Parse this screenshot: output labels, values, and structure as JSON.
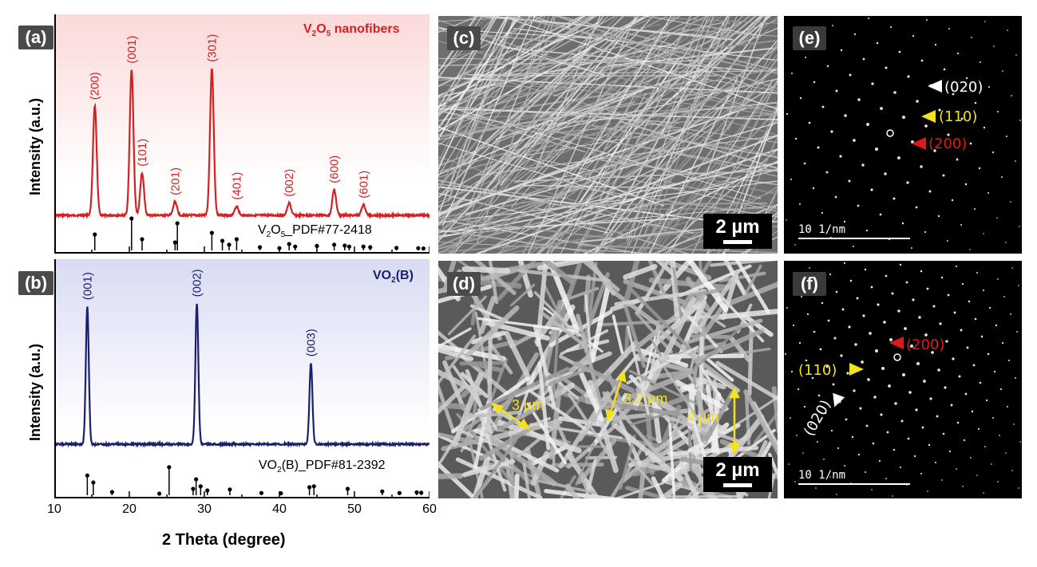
{
  "panels": {
    "a": {
      "tag": "(a)",
      "title_main": "V",
      "title_sub1": "2",
      "title_mid": "O",
      "title_sub2": "5",
      "title_tail": " nanofibers",
      "ref_main": "V",
      "ref_sub1": "2",
      "ref_mid": "O",
      "ref_sub2": "5",
      "ref_tail": "_PDF#77-2418"
    },
    "b": {
      "tag": "(b)",
      "title_main": "VO",
      "title_sub": "2",
      "title_tail": "(B)",
      "ref_main": "VO",
      "ref_sub": "2",
      "ref_tail": "(B)_PDF#81-2392"
    },
    "c": {
      "tag": "(c)",
      "scale": "2 µm"
    },
    "d": {
      "tag": "(d)",
      "scale": "2 µm",
      "measure1": "3 µm",
      "measure2": "3.2 µm",
      "measure3": "4 µm"
    },
    "e": {
      "tag": "(e)",
      "scale": "10 1/nm",
      "label_020": "(020)",
      "label_110": "(110)",
      "label_200": "(200)"
    },
    "f": {
      "tag": "(f)",
      "scale": "10 1/nm",
      "label_020": "(020)",
      "label_110": "(110)",
      "label_200": "(200)"
    }
  },
  "axes": {
    "ylabel": "Intensity (a.u.)",
    "xlabel": "2 Theta (degree)",
    "xticks": [
      "10",
      "20",
      "30",
      "40",
      "50",
      "60"
    ]
  },
  "colors": {
    "v2o5": "#d42020",
    "vo2": "#1a1f6e",
    "arrow_white": "#ffffff",
    "arrow_yellow": "#f5e21a",
    "arrow_red": "#e01818",
    "measure": "#f5e21a"
  },
  "chart_data": [
    {
      "type": "line",
      "panel": "a",
      "series": [
        {
          "name": "V2O5 nanofibers",
          "peaks": [
            {
              "x": 15.4,
              "y": 0.72,
              "label": "(200)"
            },
            {
              "x": 20.3,
              "y": 0.96,
              "label": "(001)"
            },
            {
              "x": 21.7,
              "y": 0.28,
              "label": "(101)"
            },
            {
              "x": 26.1,
              "y": 0.09,
              "label": "(201)"
            },
            {
              "x": 31.0,
              "y": 0.97,
              "label": "(301)"
            },
            {
              "x": 34.3,
              "y": 0.06,
              "label": "(401)"
            },
            {
              "x": 41.3,
              "y": 0.08,
              "label": "(002)"
            },
            {
              "x": 47.3,
              "y": 0.17,
              "label": "(600)"
            },
            {
              "x": 51.2,
              "y": 0.07,
              "label": "(601)"
            }
          ]
        }
      ],
      "reference": {
        "name": "V2O5_PDF#77-2418",
        "sticks": [
          [
            15.4,
            0.5
          ],
          [
            20.3,
            1.0
          ],
          [
            21.7,
            0.35
          ],
          [
            26.1,
            0.25
          ],
          [
            26.4,
            0.85
          ],
          [
            31.0,
            0.55
          ],
          [
            32.4,
            0.3
          ],
          [
            33.3,
            0.18
          ],
          [
            34.3,
            0.35
          ],
          [
            37.4,
            0.1
          ],
          [
            40.0,
            0.07
          ],
          [
            41.3,
            0.2
          ],
          [
            42.1,
            0.12
          ],
          [
            45.0,
            0.14
          ],
          [
            47.3,
            0.18
          ],
          [
            48.7,
            0.15
          ],
          [
            49.3,
            0.12
          ],
          [
            51.2,
            0.12
          ],
          [
            52.1,
            0.1
          ],
          [
            55.6,
            0.08
          ],
          [
            58.5,
            0.07
          ],
          [
            59.2,
            0.06
          ]
        ]
      },
      "xlim": [
        10,
        60
      ],
      "ylabel": "Intensity (a.u.)"
    },
    {
      "type": "line",
      "panel": "b",
      "series": [
        {
          "name": "VO2(B)",
          "peaks": [
            {
              "x": 14.4,
              "y": 0.9,
              "label": "(001)"
            },
            {
              "x": 29.0,
              "y": 0.92,
              "label": "(002)"
            },
            {
              "x": 44.2,
              "y": 0.53,
              "label": "(003)"
            }
          ]
        }
      ],
      "reference": {
        "name": "VO2(B)_PDF#81-2392",
        "sticks": [
          [
            14.4,
            0.62
          ],
          [
            15.2,
            0.4
          ],
          [
            17.7,
            0.1
          ],
          [
            24.0,
            0.05
          ],
          [
            25.3,
            0.88
          ],
          [
            28.5,
            0.2
          ],
          [
            28.9,
            0.5
          ],
          [
            29.5,
            0.28
          ],
          [
            30.4,
            0.15
          ],
          [
            33.4,
            0.18
          ],
          [
            37.6,
            0.07
          ],
          [
            40.2,
            0.06
          ],
          [
            44.0,
            0.25
          ],
          [
            44.6,
            0.28
          ],
          [
            49.1,
            0.2
          ],
          [
            53.7,
            0.12
          ],
          [
            56.0,
            0.07
          ],
          [
            58.3,
            0.09
          ],
          [
            58.9,
            0.08
          ]
        ]
      },
      "xlim": [
        10,
        60
      ],
      "xlabel": "2 Theta (degree)",
      "ylabel": "Intensity (a.u.)"
    }
  ]
}
